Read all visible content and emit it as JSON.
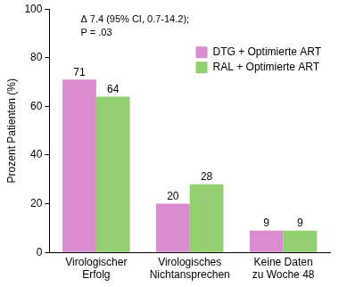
{
  "chart_data": {
    "type": "bar",
    "y_label": "Prozent Patienten (%)",
    "annotations": [
      "Δ 7.4 (95% CI, 0.7-14.2);",
      "P = .03"
    ],
    "categories": [
      "Virologischer\nErfolg",
      "Virologisches\nNichtansprechen",
      "Keine Daten\nzu Woche 48"
    ],
    "series": [
      {
        "name": "DTG + Optimierte ART",
        "color": "#d98ccf",
        "values": [
          71,
          20,
          9
        ]
      },
      {
        "name": "RAL + Optimierte ART",
        "color": "#92cf6f",
        "values": [
          64,
          28,
          9
        ]
      }
    ],
    "ylim": [
      0,
      100
    ],
    "yticks": [
      0,
      20,
      40,
      60,
      80,
      100
    ],
    "grid": false,
    "legend": "upper right",
    "data_labels": true
  }
}
